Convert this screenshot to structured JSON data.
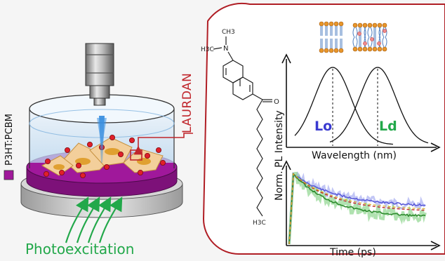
{
  "legend": {
    "label": "P3HT:PCBM",
    "swatch_color": "#a0189b"
  },
  "caption": {
    "text": "Photoexcitation",
    "color": "#22a84a"
  },
  "probe": {
    "name": "LAURDAN",
    "color": "#c0262c"
  },
  "molecule": {
    "n_group": "N",
    "methyl_top": "CH3",
    "methyl_left": "H3C",
    "oxygen": "O",
    "tail_end": "H3C"
  },
  "spectrum": {
    "y_label": "Norm. PL Intensity",
    "x_label": "Wavelength (nm)",
    "peaks": [
      {
        "label": "Lo",
        "color": "#3a3ad0"
      },
      {
        "label": "Ld",
        "color": "#22a84a"
      }
    ]
  },
  "decay": {
    "x_label": "Time (ps)",
    "series_colors": [
      "#5a5ad8",
      "#2e8b2e",
      "#c0262c",
      "#d8b020"
    ]
  },
  "membranes": {
    "ordered_icon": "lipid-bilayer-ordered-icon",
    "disordered_icon": "lipid-bilayer-disordered-icon"
  },
  "colors": {
    "panel_border": "#b01e25",
    "substrate": "#a0189b",
    "cell": "#f3cf9b",
    "nucleus": "#e0a030",
    "beam": "#3a8fe0",
    "dish_liquid": "#cfe3f5"
  }
}
